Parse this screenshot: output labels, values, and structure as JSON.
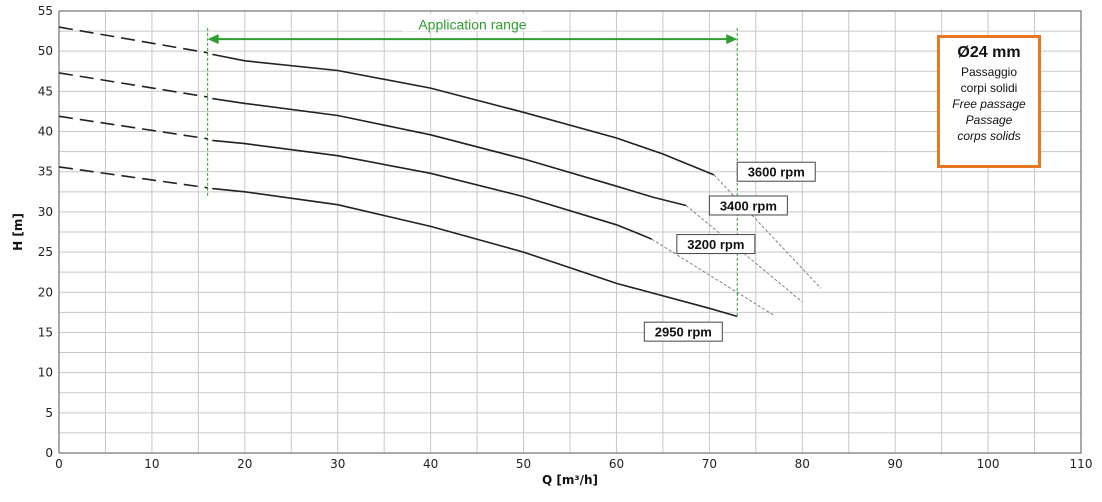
{
  "chart_data": {
    "type": "line",
    "xlabel": "Q [m³/h]",
    "ylabel": "H [m]",
    "xlim": [
      0,
      110
    ],
    "ylim": [
      0,
      55
    ],
    "xticks": [
      0,
      10,
      20,
      30,
      40,
      50,
      60,
      70,
      80,
      90,
      100,
      110
    ],
    "yticks": [
      0,
      5,
      10,
      15,
      20,
      25,
      30,
      35,
      40,
      45,
      50,
      55
    ],
    "grid": true,
    "series": [
      {
        "name": "3600 rpm",
        "dashed": [
          [
            0,
            53
          ],
          [
            16,
            49.8
          ]
        ],
        "solid": [
          [
            16.5,
            49.6
          ],
          [
            20,
            48.8
          ],
          [
            30,
            47.6
          ],
          [
            40,
            45.4
          ],
          [
            50,
            42.4
          ],
          [
            60,
            39.2
          ],
          [
            65,
            37.2
          ],
          [
            70.5,
            34.6
          ]
        ],
        "extension": [
          [
            70.5,
            34.6
          ],
          [
            82,
            20.5
          ]
        ]
      },
      {
        "name": "3400 rpm",
        "dashed": [
          [
            0,
            47.3
          ],
          [
            16,
            44.3
          ]
        ],
        "solid": [
          [
            16.5,
            44.1
          ],
          [
            20,
            43.5
          ],
          [
            30,
            42.0
          ],
          [
            40,
            39.6
          ],
          [
            50,
            36.6
          ],
          [
            60,
            33.2
          ],
          [
            64,
            31.8
          ],
          [
            67.5,
            30.8
          ]
        ],
        "extension": [
          [
            67.5,
            30.8
          ],
          [
            80,
            18.8
          ]
        ]
      },
      {
        "name": "3200 rpm",
        "dashed": [
          [
            0,
            41.9
          ],
          [
            16,
            39.1
          ]
        ],
        "solid": [
          [
            16.5,
            38.9
          ],
          [
            20,
            38.5
          ],
          [
            30,
            37.0
          ],
          [
            40,
            34.8
          ],
          [
            50,
            31.9
          ],
          [
            60,
            28.4
          ],
          [
            63,
            27.0
          ],
          [
            63.8,
            26.6
          ]
        ],
        "extension": [
          [
            63.8,
            26.6
          ],
          [
            77,
            17.1
          ]
        ]
      },
      {
        "name": "2950 rpm",
        "dashed": [
          [
            0,
            35.6
          ],
          [
            16,
            33.0
          ]
        ],
        "solid": [
          [
            16.5,
            32.9
          ],
          [
            20,
            32.5
          ],
          [
            30,
            30.9
          ],
          [
            40,
            28.2
          ],
          [
            50,
            25.0
          ],
          [
            60,
            21.1
          ],
          [
            70,
            18.0
          ],
          [
            73,
            17.0
          ]
        ],
        "extension": []
      }
    ],
    "application_range": {
      "label": "Application range",
      "from": 16,
      "to": 73
    }
  },
  "infobox": {
    "size": "Ø24 mm",
    "line1": "Passaggio",
    "line2": "corpi solidi",
    "line3": "Free passage",
    "line4": "Passage",
    "line5": "corps solids"
  },
  "colors": {
    "curve": "#222222",
    "grid": "#c8c8c8",
    "range": "#2e9e2e",
    "box_border": "#e87722"
  }
}
